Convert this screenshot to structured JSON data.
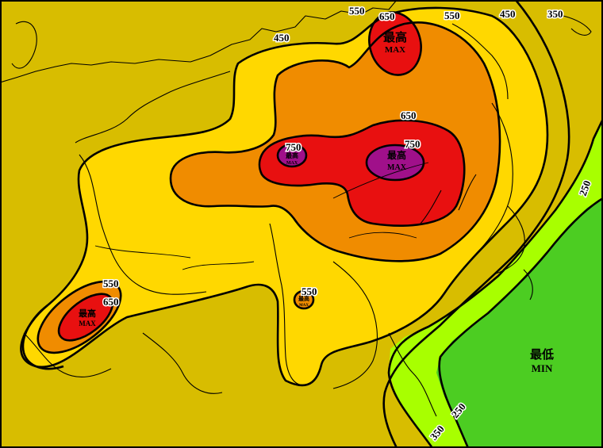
{
  "colors": {
    "background": "#d8bd00",
    "land_outside": "#c0c0c0",
    "band_350": "#d8bd00",
    "band_450": "#ffd800",
    "band_550": "#f08c00",
    "band_650": "#e81010",
    "band_max": "#a0108a",
    "band_250": "#a8ff00",
    "band_min": "#4ccd22"
  },
  "contour_labels": [
    {
      "id": "label-550-top",
      "text": "550"
    },
    {
      "id": "label-650-top",
      "text": "650"
    },
    {
      "id": "label-550-ne",
      "text": "550"
    },
    {
      "id": "label-450-ne",
      "text": "450"
    },
    {
      "id": "label-350-ne",
      "text": "350"
    },
    {
      "id": "label-450-nw",
      "text": "450"
    },
    {
      "id": "label-750-west",
      "text": "750"
    },
    {
      "id": "label-750-east",
      "text": "750"
    },
    {
      "id": "label-650-east",
      "text": "650"
    },
    {
      "id": "label-550-sw",
      "text": "550"
    },
    {
      "id": "label-650-sw",
      "text": "650"
    },
    {
      "id": "label-550-south",
      "text": "550"
    },
    {
      "id": "label-250-east",
      "text": "250"
    },
    {
      "id": "label-250-se",
      "text": "250"
    },
    {
      "id": "label-350-se",
      "text": "350"
    }
  ],
  "markers": [
    {
      "id": "max-north",
      "cn": "最高",
      "en": "MAX"
    },
    {
      "id": "max-central",
      "cn": "最高",
      "en": "MAX"
    },
    {
      "id": "max-west",
      "cn": "最高",
      "en": "MAX"
    },
    {
      "id": "max-southwest",
      "cn": "最高",
      "en": "MAX"
    },
    {
      "id": "max-south",
      "cn": "最高",
      "en": "MAX"
    },
    {
      "id": "min-southeast",
      "cn": "最低",
      "en": "MIN"
    }
  ]
}
